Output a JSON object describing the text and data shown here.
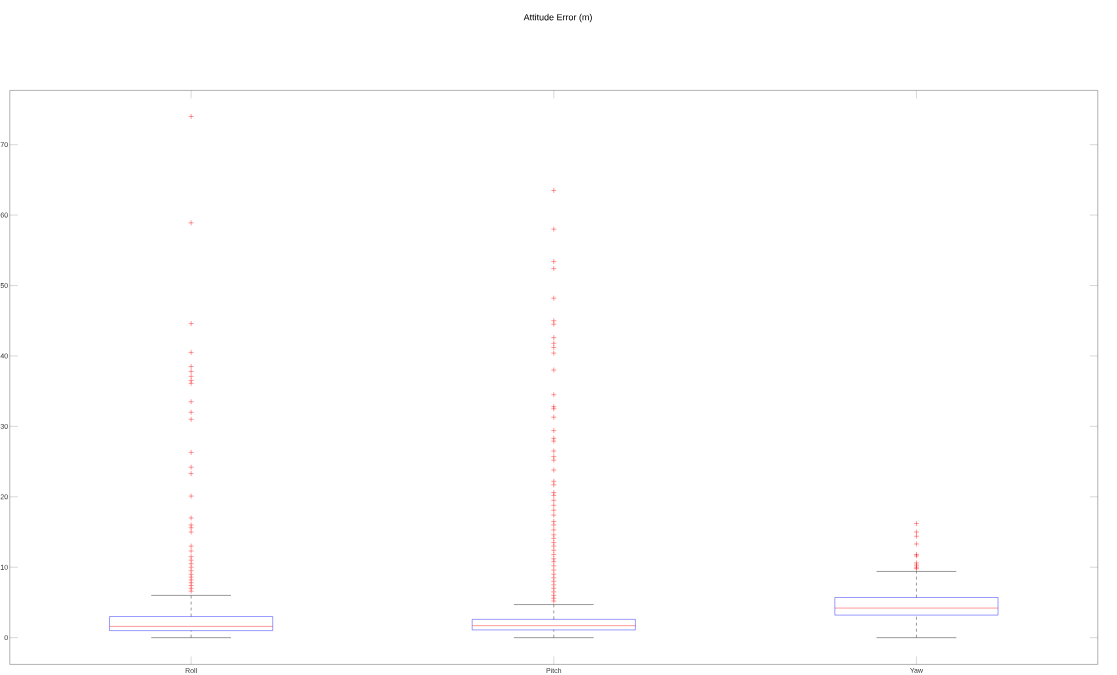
{
  "chart_data": {
    "type": "box",
    "title": "Attitude Error (m)",
    "categories": [
      "Roll",
      "Pitch",
      "Yaw"
    ],
    "ylim": [
      -3.8,
      77.7
    ],
    "yticks": [
      0,
      10,
      20,
      30,
      40,
      50,
      60,
      70
    ],
    "grid": false,
    "marker": "cross",
    "boxes": [
      {
        "low": 0,
        "q1": 1.0,
        "median": 1.6,
        "q3": 3.0,
        "high": 6.0,
        "outliers": [
          74.0,
          58.9,
          44.6,
          40.5,
          38.5,
          37.8,
          37.1,
          36.5,
          36.1,
          33.5,
          32.0,
          31.0,
          26.3,
          24.2,
          23.3,
          20.1,
          17.0,
          16.0,
          15.6,
          15.0,
          13.0,
          12.3,
          11.5,
          11.0,
          10.5,
          10.0,
          9.5,
          9.0,
          8.6,
          8.2,
          7.8,
          7.4,
          7.0,
          6.6
        ]
      },
      {
        "low": 0,
        "q1": 1.1,
        "median": 1.7,
        "q3": 2.6,
        "high": 4.7,
        "outliers": [
          63.5,
          58.0,
          53.4,
          52.4,
          48.2,
          45.0,
          44.5,
          42.6,
          41.8,
          41.2,
          40.4,
          38.0,
          34.5,
          32.8,
          32.5,
          31.3,
          29.4,
          28.3,
          27.9,
          26.5,
          25.7,
          25.2,
          23.8,
          22.2,
          21.7,
          20.6,
          20.2,
          19.5,
          18.8,
          18.1,
          17.4,
          16.5,
          16.0,
          15.3,
          14.6,
          14.1,
          13.5,
          13.0,
          12.4,
          11.8,
          11.2,
          10.8,
          10.2,
          9.6,
          9.0,
          8.5,
          8.0,
          7.5,
          7.0,
          6.5,
          6.0,
          5.6,
          5.2
        ]
      },
      {
        "low": 0,
        "q1": 3.2,
        "median": 4.2,
        "q3": 5.7,
        "high": 9.4,
        "outliers": [
          16.2,
          15.0,
          14.4,
          13.3,
          11.8,
          11.6,
          10.6,
          10.3,
          10.0,
          9.8
        ]
      }
    ]
  }
}
